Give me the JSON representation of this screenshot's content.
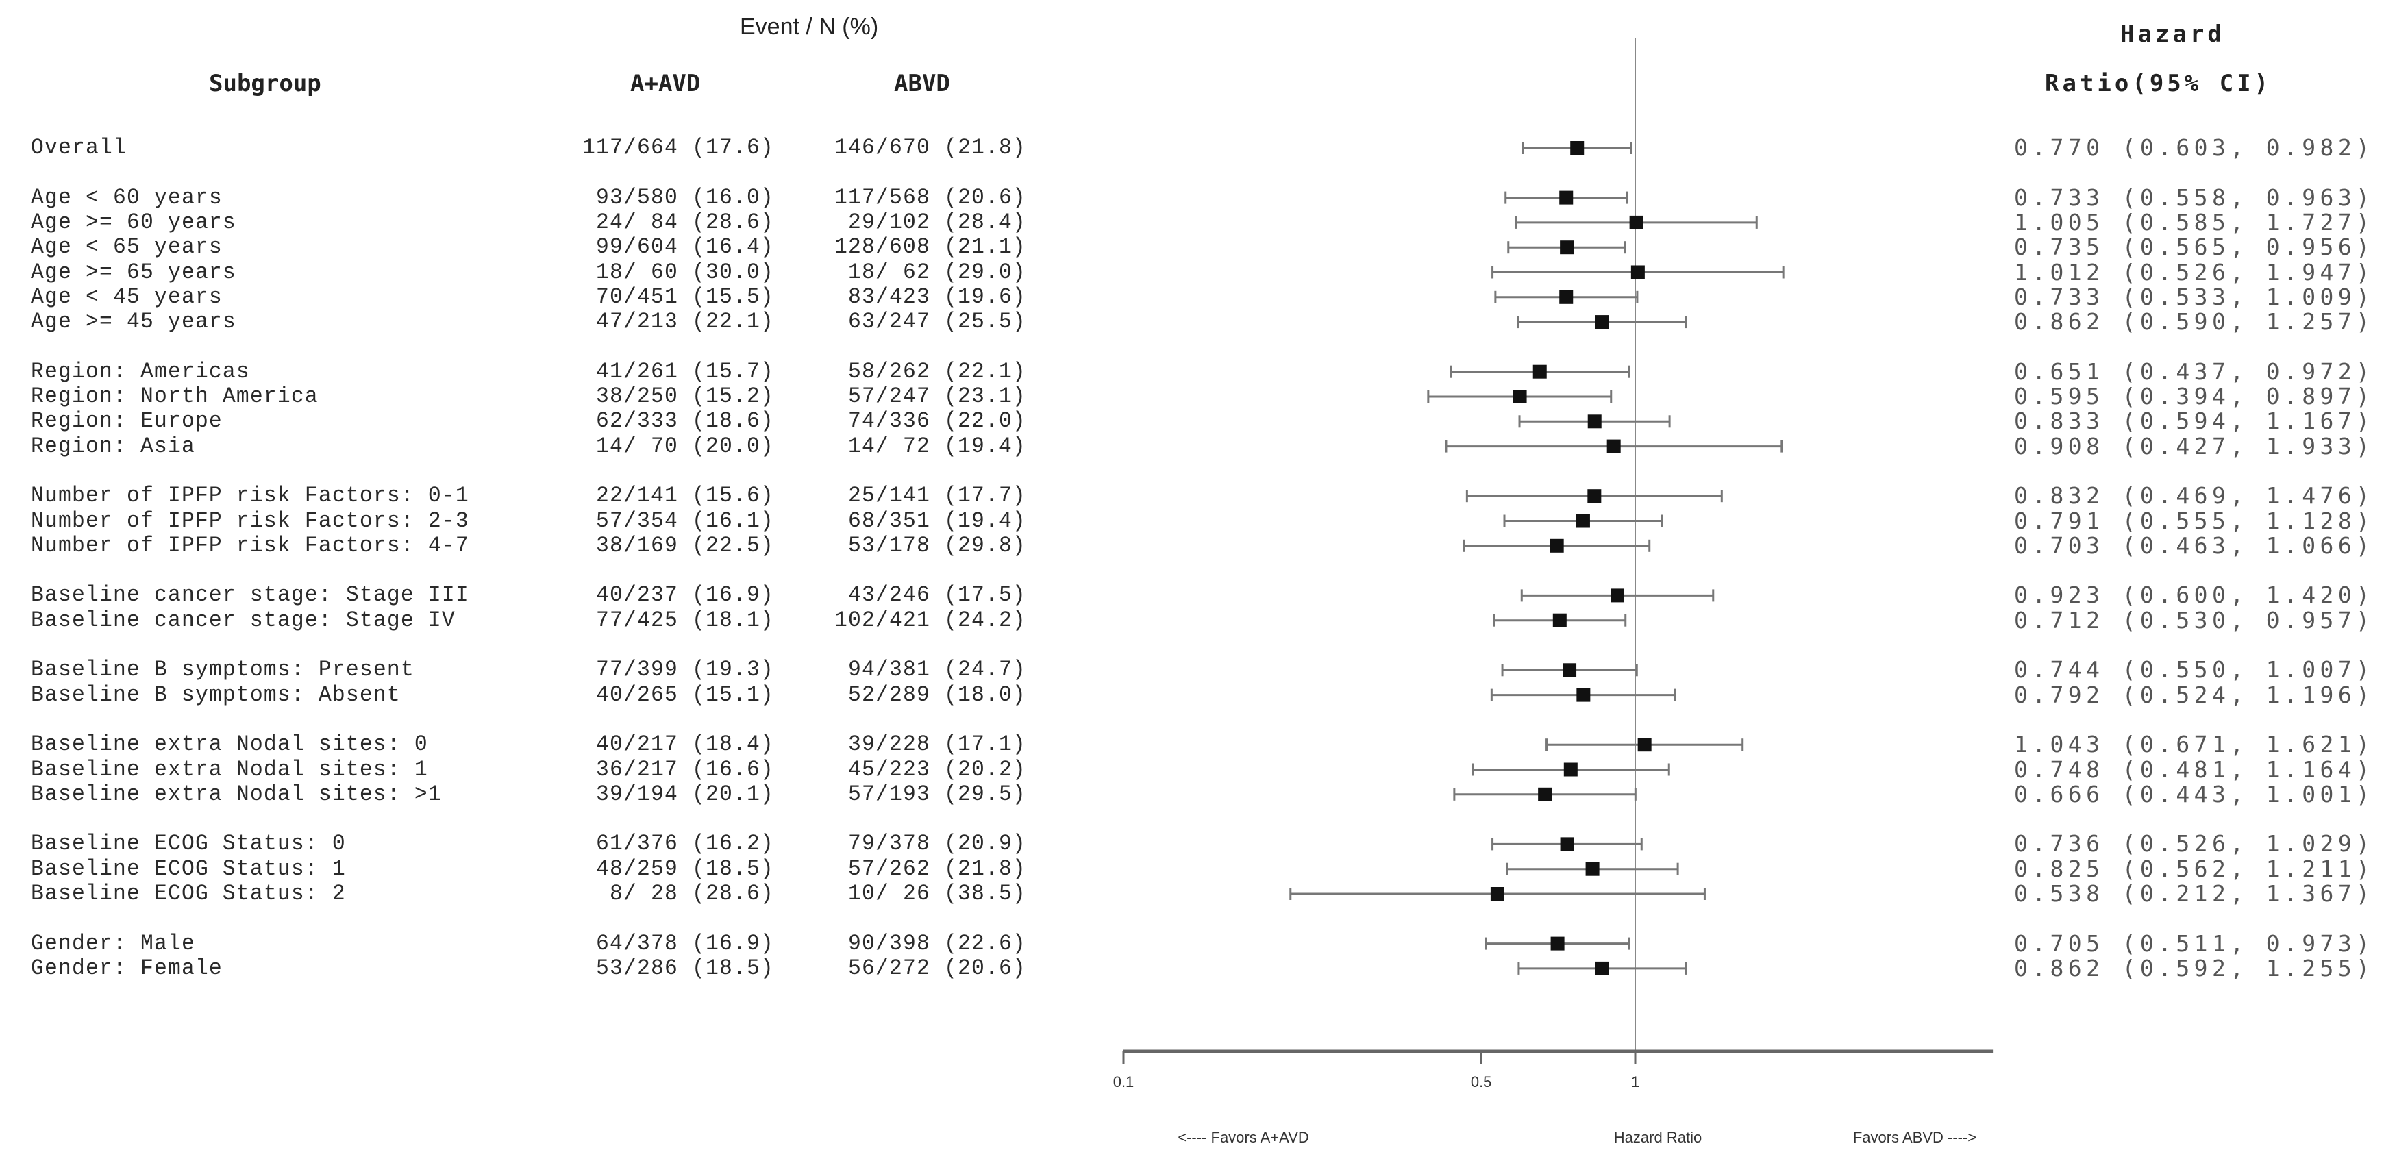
{
  "headers": {
    "event_n": "Event / N (%)",
    "subgroup": "Subgroup",
    "arm1": "A+AVD",
    "arm2": "ABVD",
    "hr_line1": "Hazard",
    "hr_line2": "Ratio(95% CI)"
  },
  "chart_data": {
    "type": "forest",
    "x_scale": "log",
    "xlim": [
      0.1,
      5
    ],
    "x_ticks": [
      "0.1",
      "0.5",
      "1"
    ],
    "reference_line": 1,
    "xlabel": "Hazard Ratio",
    "left_label": "<---- Favors A+AVD",
    "right_label": "Favors ABVD ---->",
    "colors": {
      "marker": "#111111",
      "ci": "#777777",
      "axis": "#666666"
    },
    "rows": [
      {
        "group": 0,
        "subgroup": "Overall",
        "a_avd": "117/664 (17.6)",
        "abvd": "146/670 (21.8)",
        "hr_ci": "0.770 (0.603, 0.982)",
        "hr": 0.77,
        "lower": 0.603,
        "upper": 0.982
      },
      {
        "group": 1,
        "subgroup": "Age < 60 years",
        "a_avd": " 93/580 (16.0)",
        "abvd": "117/568 (20.6)",
        "hr_ci": "0.733 (0.558, 0.963)",
        "hr": 0.733,
        "lower": 0.558,
        "upper": 0.963
      },
      {
        "group": 1,
        "subgroup": "Age >= 60 years",
        "a_avd": " 24/ 84 (28.6)",
        "abvd": " 29/102 (28.4)",
        "hr_ci": "1.005 (0.585, 1.727)",
        "hr": 1.005,
        "lower": 0.585,
        "upper": 1.727
      },
      {
        "group": 1,
        "subgroup": "Age < 65 years",
        "a_avd": " 99/604 (16.4)",
        "abvd": "128/608 (21.1)",
        "hr_ci": "0.735 (0.565, 0.956)",
        "hr": 0.735,
        "lower": 0.565,
        "upper": 0.956
      },
      {
        "group": 1,
        "subgroup": "Age >= 65 years",
        "a_avd": " 18/ 60 (30.0)",
        "abvd": " 18/ 62 (29.0)",
        "hr_ci": "1.012 (0.526, 1.947)",
        "hr": 1.012,
        "lower": 0.526,
        "upper": 1.947
      },
      {
        "group": 1,
        "subgroup": "Age < 45 years",
        "a_avd": " 70/451 (15.5)",
        "abvd": " 83/423 (19.6)",
        "hr_ci": "0.733 (0.533, 1.009)",
        "hr": 0.733,
        "lower": 0.533,
        "upper": 1.009
      },
      {
        "group": 1,
        "subgroup": "Age >= 45 years",
        "a_avd": " 47/213 (22.1)",
        "abvd": " 63/247 (25.5)",
        "hr_ci": "0.862 (0.590, 1.257)",
        "hr": 0.862,
        "lower": 0.59,
        "upper": 1.257
      },
      {
        "group": 2,
        "subgroup": "Region: Americas",
        "a_avd": " 41/261 (15.7)",
        "abvd": " 58/262 (22.1)",
        "hr_ci": "0.651 (0.437, 0.972)",
        "hr": 0.651,
        "lower": 0.437,
        "upper": 0.972
      },
      {
        "group": 2,
        "subgroup": "Region: North America",
        "a_avd": " 38/250 (15.2)",
        "abvd": " 57/247 (23.1)",
        "hr_ci": "0.595 (0.394, 0.897)",
        "hr": 0.595,
        "lower": 0.394,
        "upper": 0.897
      },
      {
        "group": 2,
        "subgroup": "Region: Europe",
        "a_avd": " 62/333 (18.6)",
        "abvd": " 74/336 (22.0)",
        "hr_ci": "0.833 (0.594, 1.167)",
        "hr": 0.833,
        "lower": 0.594,
        "upper": 1.167
      },
      {
        "group": 2,
        "subgroup": "Region: Asia",
        "a_avd": " 14/ 70 (20.0)",
        "abvd": " 14/ 72 (19.4)",
        "hr_ci": "0.908 (0.427, 1.933)",
        "hr": 0.908,
        "lower": 0.427,
        "upper": 1.933
      },
      {
        "group": 3,
        "subgroup": "Number of IPFP risk Factors: 0-1",
        "a_avd": " 22/141 (15.6)",
        "abvd": " 25/141 (17.7)",
        "hr_ci": "0.832 (0.469, 1.476)",
        "hr": 0.832,
        "lower": 0.469,
        "upper": 1.476
      },
      {
        "group": 3,
        "subgroup": "Number of IPFP risk Factors: 2-3",
        "a_avd": " 57/354 (16.1)",
        "abvd": " 68/351 (19.4)",
        "hr_ci": "0.791 (0.555, 1.128)",
        "hr": 0.791,
        "lower": 0.555,
        "upper": 1.128
      },
      {
        "group": 3,
        "subgroup": "Number of IPFP risk Factors: 4-7",
        "a_avd": " 38/169 (22.5)",
        "abvd": " 53/178 (29.8)",
        "hr_ci": "0.703 (0.463, 1.066)",
        "hr": 0.703,
        "lower": 0.463,
        "upper": 1.066
      },
      {
        "group": 4,
        "subgroup": "Baseline cancer stage: Stage III",
        "a_avd": " 40/237 (16.9)",
        "abvd": " 43/246 (17.5)",
        "hr_ci": "0.923 (0.600, 1.420)",
        "hr": 0.923,
        "lower": 0.6,
        "upper": 1.42
      },
      {
        "group": 4,
        "subgroup": "Baseline cancer stage: Stage IV",
        "a_avd": " 77/425 (18.1)",
        "abvd": "102/421 (24.2)",
        "hr_ci": "0.712 (0.530, 0.957)",
        "hr": 0.712,
        "lower": 0.53,
        "upper": 0.957
      },
      {
        "group": 5,
        "subgroup": "Baseline B symptoms: Present",
        "a_avd": " 77/399 (19.3)",
        "abvd": " 94/381 (24.7)",
        "hr_ci": "0.744 (0.550, 1.007)",
        "hr": 0.744,
        "lower": 0.55,
        "upper": 1.007
      },
      {
        "group": 5,
        "subgroup": "Baseline B symptoms: Absent",
        "a_avd": " 40/265 (15.1)",
        "abvd": " 52/289 (18.0)",
        "hr_ci": "0.792 (0.524, 1.196)",
        "hr": 0.792,
        "lower": 0.524,
        "upper": 1.196
      },
      {
        "group": 6,
        "subgroup": "Baseline extra Nodal sites: 0",
        "a_avd": " 40/217 (18.4)",
        "abvd": " 39/228 (17.1)",
        "hr_ci": "1.043 (0.671, 1.621)",
        "hr": 1.043,
        "lower": 0.671,
        "upper": 1.621
      },
      {
        "group": 6,
        "subgroup": "Baseline extra Nodal sites: 1",
        "a_avd": " 36/217 (16.6)",
        "abvd": " 45/223 (20.2)",
        "hr_ci": "0.748 (0.481, 1.164)",
        "hr": 0.748,
        "lower": 0.481,
        "upper": 1.164
      },
      {
        "group": 6,
        "subgroup": "Baseline extra Nodal sites: >1",
        "a_avd": " 39/194 (20.1)",
        "abvd": " 57/193 (29.5)",
        "hr_ci": "0.666 (0.443, 1.001)",
        "hr": 0.666,
        "lower": 0.443,
        "upper": 1.001
      },
      {
        "group": 7,
        "subgroup": "Baseline ECOG Status: 0",
        "a_avd": " 61/376 (16.2)",
        "abvd": " 79/378 (20.9)",
        "hr_ci": "0.736 (0.526, 1.029)",
        "hr": 0.736,
        "lower": 0.526,
        "upper": 1.029
      },
      {
        "group": 7,
        "subgroup": "Baseline ECOG Status: 1",
        "a_avd": " 48/259 (18.5)",
        "abvd": " 57/262 (21.8)",
        "hr_ci": "0.825 (0.562, 1.211)",
        "hr": 0.825,
        "lower": 0.562,
        "upper": 1.211
      },
      {
        "group": 7,
        "subgroup": "Baseline ECOG Status: 2",
        "a_avd": "  8/ 28 (28.6)",
        "abvd": " 10/ 26 (38.5)",
        "hr_ci": "0.538 (0.212, 1.367)",
        "hr": 0.538,
        "lower": 0.212,
        "upper": 1.367
      },
      {
        "group": 8,
        "subgroup": "Gender: Male",
        "a_avd": " 64/378 (16.9)",
        "abvd": " 90/398 (22.6)",
        "hr_ci": "0.705 (0.511, 0.973)",
        "hr": 0.705,
        "lower": 0.511,
        "upper": 0.973
      },
      {
        "group": 8,
        "subgroup": "Gender: Female",
        "a_avd": " 53/286 (18.5)",
        "abvd": " 56/272 (20.6)",
        "hr_ci": "0.862 (0.592, 1.255)",
        "hr": 0.862,
        "lower": 0.592,
        "upper": 1.255
      }
    ]
  }
}
